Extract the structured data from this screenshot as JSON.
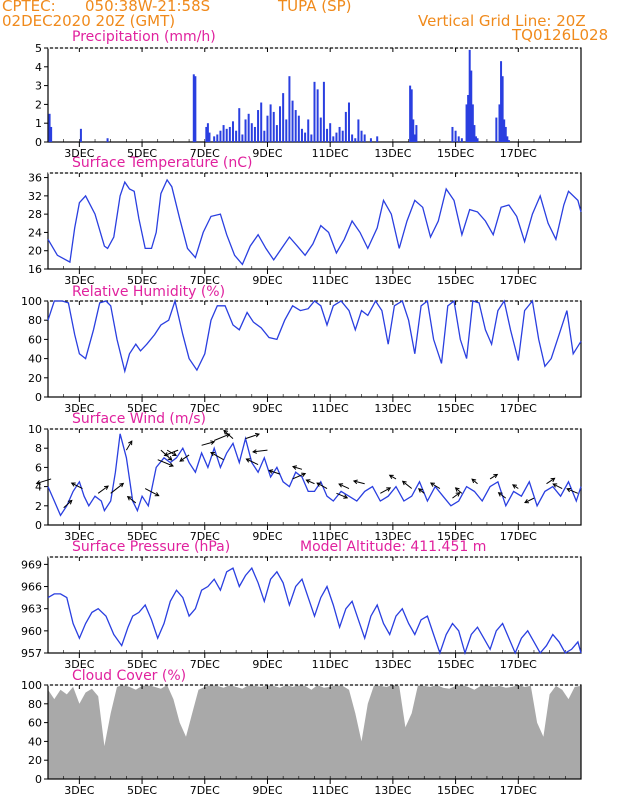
{
  "header": {
    "source": "CPTEC:",
    "location": "050:38W-21:58S",
    "station": "TUPA (SP)",
    "date": "02DEC2020 20Z (GMT)",
    "vertical_grid": "Vertical Grid Line: 20Z",
    "model_id": "TQ0126L028"
  },
  "colors": {
    "series": "#2a3fe0",
    "title": "#e0219e",
    "header": "#f08a1c",
    "cloud": "#a9a9a9",
    "arrow": "#000000"
  },
  "x_ticks": [
    "3DEC",
    "5DEC",
    "7DEC",
    "9DEC",
    "11DEC",
    "13DEC",
    "15DEC",
    "17DEC"
  ],
  "panels": {
    "precip": {
      "title": "Precipitation (mm/h)"
    },
    "temp": {
      "title": "Surface Temperature (nC)"
    },
    "rh": {
      "title": "Relative Humidity (%)"
    },
    "wind": {
      "title": "Surface Wind (m/s)"
    },
    "pressure": {
      "title": "Surface Pressure (hPa)",
      "altitude": "Model Altitude: 411.451  m"
    },
    "cloud": {
      "title": "Cloud Cover (%)"
    }
  },
  "chart_data": [
    {
      "type": "bar",
      "name": "precip",
      "ylim": [
        0,
        5
      ],
      "yticks": [
        0,
        1,
        2,
        3,
        4,
        5
      ],
      "x": [
        0.05,
        0.1,
        1.05,
        1.9,
        4.65,
        4.7,
        5.05,
        5.1,
        5.15,
        5.3,
        5.4,
        5.5,
        5.6,
        5.7,
        5.8,
        5.9,
        6.0,
        6.1,
        6.2,
        6.3,
        6.4,
        6.5,
        6.6,
        6.7,
        6.8,
        6.9,
        7.0,
        7.1,
        7.2,
        7.3,
        7.4,
        7.5,
        7.6,
        7.7,
        7.8,
        7.9,
        8.0,
        8.1,
        8.2,
        8.3,
        8.4,
        8.5,
        8.6,
        8.7,
        8.8,
        8.9,
        9.0,
        9.1,
        9.2,
        9.3,
        9.4,
        9.5,
        9.6,
        9.7,
        9.8,
        9.9,
        10.0,
        10.1,
        10.3,
        10.5,
        11.55,
        11.6,
        11.65,
        11.7,
        11.75,
        12.9,
        13.0,
        13.1,
        13.2,
        13.35,
        13.4,
        13.45,
        13.5,
        13.55,
        13.6,
        13.65,
        13.7,
        14.3,
        14.4,
        14.45,
        14.5,
        14.55,
        14.6,
        14.65,
        14.7
      ],
      "values": [
        1.5,
        0.8,
        0.7,
        0.2,
        3.6,
        3.5,
        0.8,
        1.0,
        0.5,
        0.3,
        0.4,
        0.6,
        0.9,
        0.7,
        0.8,
        1.1,
        0.6,
        1.8,
        0.4,
        1.2,
        1.5,
        1.0,
        0.8,
        1.7,
        2.1,
        0.6,
        1.4,
        2.0,
        1.6,
        0.9,
        1.9,
        2.6,
        1.2,
        3.5,
        2.2,
        1.7,
        1.4,
        0.7,
        0.5,
        1.2,
        0.4,
        3.2,
        2.8,
        1.3,
        3.2,
        0.7,
        1.0,
        0.3,
        0.5,
        0.8,
        0.6,
        1.6,
        2.1,
        0.4,
        0.2,
        1.2,
        0.6,
        0.4,
        0.2,
        0.3,
        3.0,
        2.8,
        1.2,
        0.4,
        0.9,
        0.8,
        0.6,
        0.3,
        0.2,
        2.0,
        2.5,
        4.9,
        3.8,
        2.0,
        0.9,
        0.3,
        0.2,
        1.3,
        2.0,
        4.3,
        3.5,
        1.2,
        0.8,
        0.3,
        0.1
      ]
    },
    {
      "type": "line",
      "name": "temp",
      "ylim": [
        16,
        37
      ],
      "yticks": [
        16,
        20,
        24,
        28,
        32,
        36
      ],
      "x": [
        0.0,
        0.3,
        0.7,
        0.85,
        1.0,
        1.2,
        1.5,
        1.8,
        1.9,
        2.1,
        2.3,
        2.45,
        2.6,
        2.75,
        2.9,
        3.1,
        3.3,
        3.45,
        3.6,
        3.8,
        3.95,
        4.2,
        4.45,
        4.7,
        4.95,
        5.2,
        5.5,
        5.7,
        5.95,
        6.2,
        6.45,
        6.7,
        6.95,
        7.2,
        7.45,
        7.7,
        7.95,
        8.2,
        8.45,
        8.7,
        8.95,
        9.2,
        9.45,
        9.7,
        9.95,
        10.2,
        10.5,
        10.7,
        10.95,
        11.2,
        11.45,
        11.7,
        11.95,
        12.2,
        12.45,
        12.7,
        12.95,
        13.2,
        13.45,
        13.7,
        13.95,
        14.2,
        14.45,
        14.7,
        14.95,
        15.2,
        15.45,
        15.7,
        15.95,
        16.2,
        16.45,
        16.6,
        16.9,
        17.0
      ],
      "values": [
        22.5,
        19.0,
        17.5,
        25.0,
        30.5,
        32.0,
        28.0,
        21.0,
        20.5,
        23.0,
        32.0,
        35.0,
        33.5,
        33.0,
        27.0,
        20.5,
        20.5,
        24.0,
        32.5,
        35.5,
        34.0,
        27.0,
        20.5,
        18.5,
        24.0,
        27.5,
        28.0,
        23.5,
        19.0,
        17.0,
        21.0,
        23.5,
        20.5,
        18.0,
        20.5,
        23.0,
        21.0,
        19.0,
        21.5,
        25.5,
        24.0,
        19.5,
        22.5,
        26.5,
        24.0,
        20.5,
        25.0,
        31.0,
        28.0,
        20.5,
        26.5,
        31.0,
        29.5,
        23.0,
        26.5,
        33.5,
        31.0,
        23.5,
        29.0,
        28.5,
        26.5,
        23.5,
        29.5,
        30.0,
        27.5,
        22.0,
        28.0,
        32.0,
        26.0,
        22.5,
        30.0,
        33.0,
        31.0,
        28.5
      ]
    },
    {
      "type": "line",
      "name": "rh",
      "ylim": [
        0,
        100
      ],
      "yticks": [
        0,
        20,
        40,
        60,
        80,
        100
      ],
      "x": [
        0.0,
        0.2,
        0.45,
        0.65,
        0.85,
        1.0,
        1.2,
        1.45,
        1.65,
        1.85,
        2.0,
        2.2,
        2.45,
        2.6,
        2.8,
        2.95,
        3.15,
        3.4,
        3.6,
        3.85,
        4.05,
        4.3,
        4.5,
        4.75,
        5.0,
        5.2,
        5.4,
        5.65,
        5.9,
        6.1,
        6.35,
        6.55,
        6.8,
        7.05,
        7.3,
        7.55,
        7.8,
        8.05,
        8.3,
        8.5,
        8.7,
        8.9,
        9.1,
        9.35,
        9.6,
        9.8,
        10.0,
        10.2,
        10.45,
        10.65,
        10.85,
        11.05,
        11.3,
        11.5,
        11.7,
        11.9,
        12.1,
        12.3,
        12.55,
        12.75,
        12.95,
        13.15,
        13.35,
        13.55,
        13.75,
        13.95,
        14.15,
        14.35,
        14.55,
        14.75,
        15.0,
        15.2,
        15.45,
        15.65,
        15.85,
        16.05,
        16.3,
        16.55,
        16.75,
        17.0
      ],
      "values": [
        80,
        100,
        100,
        98,
        65,
        45,
        40,
        70,
        98,
        100,
        95,
        60,
        27,
        45,
        55,
        48,
        55,
        65,
        75,
        80,
        100,
        65,
        40,
        28,
        45,
        80,
        95,
        95,
        75,
        70,
        88,
        78,
        72,
        62,
        60,
        80,
        95,
        90,
        92,
        100,
        95,
        75,
        95,
        100,
        90,
        70,
        90,
        85,
        100,
        90,
        55,
        95,
        100,
        80,
        45,
        95,
        100,
        60,
        35,
        95,
        100,
        60,
        40,
        100,
        98,
        70,
        55,
        90,
        100,
        70,
        38,
        90,
        100,
        60,
        32,
        40,
        65,
        90,
        45,
        58
      ]
    },
    {
      "type": "line",
      "name": "wind_speed",
      "ylim": [
        0,
        10
      ],
      "yticks": [
        0,
        2,
        4,
        6,
        8,
        10
      ],
      "x": [
        0.0,
        0.2,
        0.4,
        0.6,
        0.8,
        1.0,
        1.15,
        1.3,
        1.5,
        1.7,
        1.8,
        2.0,
        2.15,
        2.3,
        2.5,
        2.7,
        2.85,
        3.0,
        3.2,
        3.45,
        3.7,
        3.9,
        4.1,
        4.3,
        4.5,
        4.7,
        4.9,
        5.1,
        5.3,
        5.5,
        5.7,
        5.9,
        6.1,
        6.3,
        6.5,
        6.7,
        6.9,
        7.1,
        7.3,
        7.5,
        7.7,
        7.9,
        8.1,
        8.3,
        8.5,
        8.7,
        8.9,
        9.1,
        9.35,
        9.6,
        9.85,
        10.1,
        10.35,
        10.6,
        10.85,
        11.1,
        11.35,
        11.6,
        11.85,
        12.1,
        12.35,
        12.6,
        12.85,
        13.1,
        13.35,
        13.6,
        13.85,
        14.1,
        14.35,
        14.6,
        14.85,
        15.1,
        15.35,
        15.6,
        15.85,
        16.1,
        16.35,
        16.6,
        16.85,
        17.0
      ],
      "values": [
        4.0,
        2.5,
        1.0,
        2.0,
        3.5,
        4.5,
        3.0,
        2.0,
        3.0,
        2.5,
        1.5,
        2.5,
        5.5,
        9.5,
        7.0,
        2.5,
        1.5,
        3.0,
        2.0,
        6.0,
        7.0,
        6.5,
        7.0,
        8.0,
        6.5,
        5.5,
        7.5,
        6.0,
        8.0,
        6.0,
        7.5,
        8.5,
        6.5,
        9.0,
        6.5,
        5.5,
        7.0,
        5.0,
        6.0,
        4.5,
        4.0,
        5.5,
        5.0,
        3.5,
        3.5,
        4.5,
        3.0,
        2.5,
        3.5,
        3.0,
        2.5,
        3.5,
        4.0,
        2.5,
        3.0,
        4.0,
        2.5,
        3.0,
        4.5,
        2.5,
        4.0,
        3.0,
        2.0,
        2.5,
        4.0,
        3.5,
        2.5,
        4.0,
        4.5,
        2.0,
        3.5,
        3.0,
        4.5,
        2.0,
        3.5,
        4.0,
        3.0,
        4.5,
        2.5,
        4.0
      ]
    },
    {
      "type": "line",
      "name": "pressure",
      "ylim": [
        957,
        970
      ],
      "yticks": [
        957,
        960,
        963,
        966,
        969
      ],
      "x": [
        0.0,
        0.2,
        0.4,
        0.6,
        0.8,
        1.0,
        1.2,
        1.4,
        1.6,
        1.85,
        2.1,
        2.35,
        2.55,
        2.7,
        2.9,
        3.1,
        3.3,
        3.5,
        3.7,
        3.9,
        4.1,
        4.3,
        4.5,
        4.7,
        4.9,
        5.1,
        5.3,
        5.5,
        5.7,
        5.9,
        6.1,
        6.3,
        6.5,
        6.7,
        6.9,
        7.1,
        7.3,
        7.5,
        7.7,
        7.9,
        8.1,
        8.3,
        8.5,
        8.7,
        8.9,
        9.1,
        9.3,
        9.5,
        9.7,
        9.9,
        10.1,
        10.3,
        10.5,
        10.7,
        10.9,
        11.1,
        11.3,
        11.5,
        11.7,
        11.9,
        12.1,
        12.3,
        12.5,
        12.7,
        12.9,
        13.1,
        13.3,
        13.5,
        13.7,
        13.9,
        14.1,
        14.3,
        14.5,
        14.7,
        14.9,
        15.1,
        15.3,
        15.5,
        15.7,
        15.9,
        16.1,
        16.3,
        16.5,
        16.7,
        16.9,
        17.0
      ],
      "values": [
        964.5,
        965.0,
        965.0,
        964.5,
        961.0,
        959.0,
        961.0,
        962.5,
        963.0,
        962.0,
        959.5,
        958.0,
        960.5,
        962.0,
        962.5,
        963.5,
        961.5,
        959.0,
        961.0,
        964.0,
        965.5,
        964.5,
        962.0,
        963.0,
        965.5,
        966.0,
        967.0,
        965.5,
        968.0,
        968.5,
        966.0,
        967.5,
        968.5,
        966.5,
        964.0,
        967.0,
        968.0,
        966.5,
        963.5,
        966.0,
        967.0,
        964.5,
        962.0,
        964.5,
        966.0,
        963.5,
        960.5,
        963.0,
        964.0,
        961.5,
        959.0,
        962.0,
        963.5,
        961.0,
        959.5,
        962.0,
        963.0,
        961.0,
        959.5,
        961.5,
        962.0,
        959.5,
        957.0,
        959.5,
        961.0,
        960.0,
        957.0,
        959.5,
        960.5,
        959.0,
        957.5,
        960.0,
        961.0,
        959.0,
        957.0,
        959.0,
        960.0,
        958.5,
        957.0,
        958.0,
        959.5,
        958.5,
        957.0,
        957.5,
        958.5,
        957.0
      ]
    },
    {
      "type": "area",
      "name": "cloud",
      "ylim": [
        0,
        100
      ],
      "yticks": [
        0,
        20,
        40,
        60,
        80,
        100
      ],
      "x": [
        0.0,
        0.2,
        0.4,
        0.6,
        0.8,
        1.0,
        1.2,
        1.4,
        1.6,
        1.8,
        2.0,
        2.2,
        2.4,
        2.6,
        2.8,
        3.0,
        3.2,
        3.4,
        3.6,
        3.8,
        4.0,
        4.2,
        4.4,
        4.6,
        4.8,
        5.0,
        5.2,
        5.4,
        5.6,
        5.8,
        6.0,
        6.2,
        6.4,
        6.6,
        6.8,
        7.0,
        7.2,
        7.4,
        7.6,
        7.8,
        8.0,
        8.2,
        8.4,
        8.6,
        8.8,
        9.0,
        9.2,
        9.4,
        9.6,
        9.8,
        10.0,
        10.2,
        10.4,
        10.6,
        10.8,
        11.0,
        11.2,
        11.4,
        11.6,
        11.8,
        12.0,
        12.2,
        12.4,
        12.6,
        12.8,
        13.0,
        13.2,
        13.4,
        13.6,
        13.8,
        14.0,
        14.2,
        14.4,
        14.6,
        14.8,
        15.0,
        15.2,
        15.4,
        15.6,
        15.8,
        16.0,
        16.2,
        16.4,
        16.6,
        16.8,
        17.0
      ],
      "values": [
        95,
        85,
        95,
        90,
        98,
        80,
        92,
        96,
        88,
        35,
        70,
        98,
        100,
        98,
        95,
        99,
        100,
        98,
        96,
        100,
        85,
        60,
        45,
        70,
        95,
        98,
        100,
        99,
        97,
        100,
        98,
        96,
        100,
        99,
        98,
        100,
        99,
        97,
        100,
        98,
        100,
        99,
        95,
        100,
        97,
        98,
        100,
        99,
        95,
        70,
        40,
        80,
        100,
        99,
        98,
        100,
        99,
        55,
        70,
        100,
        99,
        98,
        100,
        97,
        96,
        99,
        100,
        98,
        95,
        99,
        100,
        98,
        99,
        97,
        98,
        100,
        98,
        99,
        60,
        45,
        90,
        99,
        95,
        85,
        98,
        99
      ]
    }
  ],
  "wind_arrows": {
    "x": [
      0.1,
      0.5,
      1.1,
      1.6,
      2.0,
      2.5,
      2.8,
      3.1,
      3.5,
      3.6,
      3.8,
      4.15,
      4.5,
      4.9,
      5.3,
      5.6,
      5.9,
      6.3,
      6.7,
      7.0,
      7.4,
      7.8,
      8.1,
      8.5,
      8.9,
      9.2,
      9.6,
      10.1,
      10.6,
      11.1,
      11.6,
      12.0,
      12.5,
      12.9,
      13.2,
      13.7,
      14.1,
      14.6,
      15.0,
      15.5,
      15.9,
      16.4,
      16.9
    ],
    "u": [
      -1.6,
      0.9,
      -1.2,
      1.1,
      1.4,
      0.6,
      -0.9,
      1.5,
      1.7,
      1.2,
      1.0,
      -1.5,
      -1.0,
      1.4,
      1.7,
      -1.4,
      -1.0,
      1.5,
      -1.3,
      -1.6,
      -1.2,
      1.4,
      -1.0,
      -0.9,
      -1.1,
      1.2,
      -1.1,
      -1.2,
      1.1,
      -0.7,
      -1.0,
      -0.6,
      -1.0,
      0.8,
      -0.7,
      -0.6,
      0.8,
      -0.8,
      -0.6,
      -1.0,
      0.9,
      -1.0,
      -1.2
    ],
    "v": [
      -0.5,
      0.8,
      0.6,
      0.8,
      1.1,
      1.0,
      0.7,
      -0.8,
      -0.7,
      -1.1,
      -0.6,
      -0.6,
      -0.7,
      0.4,
      0.7,
      0.8,
      0.9,
      0.5,
      0.6,
      -0.2,
      0.4,
      0.6,
      0.3,
      0.4,
      0.6,
      -0.5,
      0.5,
      0.3,
      0.6,
      0.4,
      0.8,
      0.5,
      0.6,
      0.6,
      0.6,
      0.5,
      0.5,
      0.6,
      0.4,
      -0.5,
      0.6,
      0.5,
      0.5
    ]
  }
}
